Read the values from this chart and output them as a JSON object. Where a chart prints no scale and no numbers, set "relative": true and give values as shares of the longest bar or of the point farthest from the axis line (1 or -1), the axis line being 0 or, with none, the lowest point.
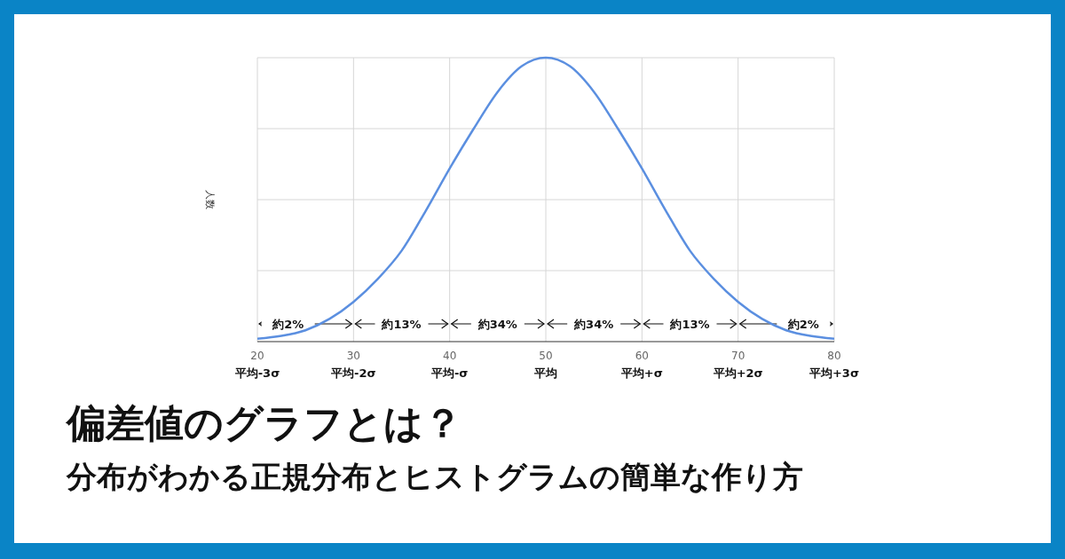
{
  "chart_data": {
    "type": "line",
    "title": "偏差値のグラフとは？",
    "subtitle": "分布がわかる正規分布とヒストグラムの簡単な作り方",
    "ylabel": "人数",
    "relative": true,
    "grid": true,
    "marker": "none",
    "line_style": "solid",
    "x": [
      20,
      22.5,
      25,
      27.5,
      30,
      32.5,
      35,
      37.5,
      40,
      42.5,
      45,
      47.5,
      50,
      52.5,
      55,
      57.5,
      60,
      62.5,
      65,
      67.5,
      70,
      72.5,
      75,
      77.5,
      80
    ],
    "series": [
      {
        "color": "#5b8fe0",
        "values": [
          0.01,
          0.02,
          0.04,
          0.08,
          0.14,
          0.22,
          0.32,
          0.46,
          0.61,
          0.75,
          0.88,
          0.97,
          1,
          0.97,
          0.88,
          0.75,
          0.61,
          0.46,
          0.32,
          0.22,
          0.14,
          0.08,
          0.04,
          0.02,
          0.01
        ]
      }
    ],
    "xlim": [
      20,
      80
    ],
    "xticks": [
      {
        "value": 20,
        "label": "20\n平均-3σ"
      },
      {
        "value": 30,
        "label": "30\n平均-2σ"
      },
      {
        "value": 40,
        "label": "40\n平均-σ"
      },
      {
        "value": 50,
        "label": "50\n平均"
      },
      {
        "value": 60,
        "label": "60\n平均+σ"
      },
      {
        "value": 70,
        "label": "70\n平均+2σ"
      },
      {
        "value": 80,
        "label": "80\n平均+3σ"
      }
    ],
    "annotations": [
      "約2%",
      "約13%",
      "約34%",
      "約34%",
      "約13%",
      "約2%"
    ]
  }
}
